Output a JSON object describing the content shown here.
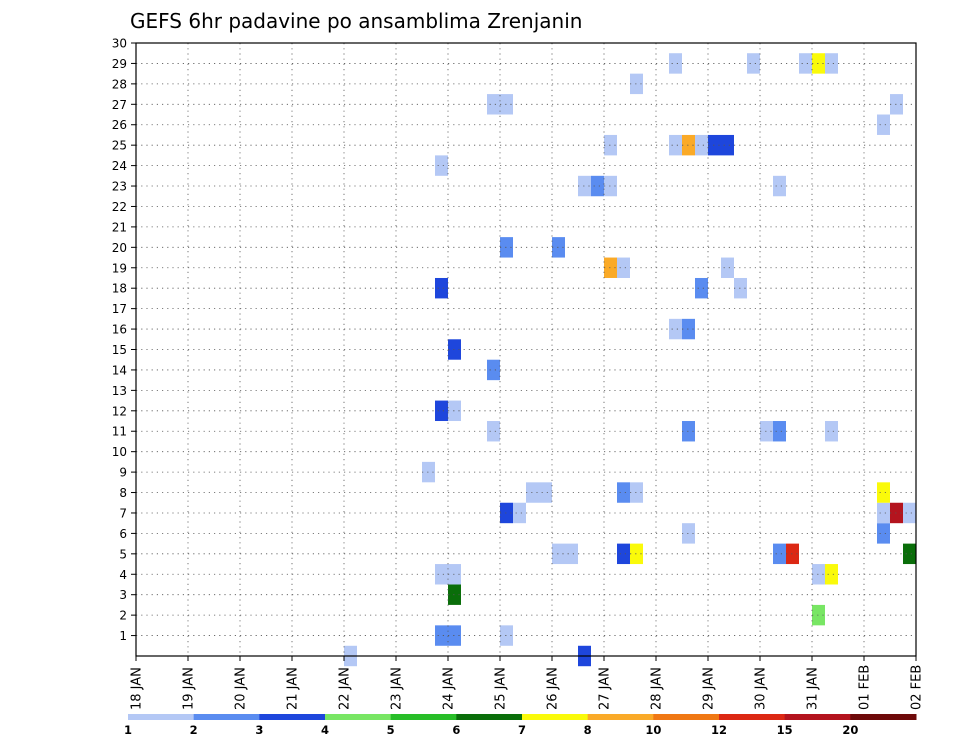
{
  "chart_data": {
    "type": "heatmap",
    "title": "GEFS 6hr padavine po ansamblima Zrenjanin",
    "x_tick_labels": [
      "18 JAN",
      "19 JAN",
      "20 JAN",
      "21 JAN",
      "22 JAN",
      "23 JAN",
      "24 JAN",
      "25 JAN",
      "26 JAN",
      "27 JAN",
      "28 JAN",
      "29 JAN",
      "30 JAN",
      "31 JAN",
      "01 FEB",
      "02 FEB"
    ],
    "y_tick_labels": [
      "1",
      "2",
      "3",
      "4",
      "5",
      "6",
      "7",
      "8",
      "9",
      "10",
      "11",
      "12",
      "13",
      "14",
      "15",
      "16",
      "17",
      "18",
      "19",
      "20",
      "21",
      "22",
      "23",
      "24",
      "25",
      "26",
      "27",
      "28",
      "29",
      "30"
    ],
    "xlim_days": [
      0,
      15
    ],
    "ylim": [
      0,
      30
    ],
    "time_step_hours": 6,
    "grid": "dotted",
    "colorbar": {
      "tick_labels": [
        "1",
        "2",
        "3",
        "4",
        "5",
        "6",
        "7",
        "8",
        "10",
        "12",
        "15",
        "20"
      ],
      "colors": [
        "#b4c8f5",
        "#5a8cf0",
        "#1e46dc",
        "#78e664",
        "#28be28",
        "#0a6e0a",
        "#fafa0a",
        "#faaa28",
        "#f07814",
        "#dc2814",
        "#b4141e",
        "#6e0a0a"
      ]
    },
    "cells_note": "x in days since 18 JAN 00z (6-hourly steps), y = ensemble member, c = colour class index (0-based)",
    "cells": [
      {
        "x": 4.0,
        "y": 0,
        "c": 0
      },
      {
        "x": 5.75,
        "y": 1,
        "c": 1
      },
      {
        "x": 6.0,
        "y": 1,
        "c": 1
      },
      {
        "x": 7.0,
        "y": 1,
        "c": 0
      },
      {
        "x": 8.5,
        "y": 0,
        "c": 2
      },
      {
        "x": 13.0,
        "y": 2,
        "c": 3
      },
      {
        "x": 6.0,
        "y": 3,
        "c": 5
      },
      {
        "x": 5.75,
        "y": 4,
        "c": 0
      },
      {
        "x": 6.0,
        "y": 4,
        "c": 0
      },
      {
        "x": 13.0,
        "y": 4,
        "c": 0
      },
      {
        "x": 13.25,
        "y": 4,
        "c": 6
      },
      {
        "x": 8.0,
        "y": 5,
        "c": 0
      },
      {
        "x": 8.25,
        "y": 5,
        "c": 0
      },
      {
        "x": 9.25,
        "y": 5,
        "c": 2
      },
      {
        "x": 9.5,
        "y": 5,
        "c": 6
      },
      {
        "x": 12.25,
        "y": 5,
        "c": 1
      },
      {
        "x": 12.5,
        "y": 5,
        "c": 9
      },
      {
        "x": 14.75,
        "y": 5,
        "c": 5
      },
      {
        "x": 10.5,
        "y": 6,
        "c": 0
      },
      {
        "x": 14.25,
        "y": 6,
        "c": 1
      },
      {
        "x": 7.0,
        "y": 7,
        "c": 2
      },
      {
        "x": 7.25,
        "y": 7,
        "c": 0
      },
      {
        "x": 14.25,
        "y": 7,
        "c": 0
      },
      {
        "x": 14.5,
        "y": 7,
        "c": 10
      },
      {
        "x": 14.75,
        "y": 7,
        "c": 0
      },
      {
        "x": 7.5,
        "y": 8,
        "c": 0
      },
      {
        "x": 7.75,
        "y": 8,
        "c": 0
      },
      {
        "x": 9.25,
        "y": 8,
        "c": 1
      },
      {
        "x": 9.5,
        "y": 8,
        "c": 0
      },
      {
        "x": 14.25,
        "y": 8,
        "c": 6
      },
      {
        "x": 5.5,
        "y": 9,
        "c": 0
      },
      {
        "x": 6.75,
        "y": 11,
        "c": 0
      },
      {
        "x": 10.5,
        "y": 11,
        "c": 1
      },
      {
        "x": 12.0,
        "y": 11,
        "c": 0
      },
      {
        "x": 12.25,
        "y": 11,
        "c": 1
      },
      {
        "x": 13.25,
        "y": 11,
        "c": 0
      },
      {
        "x": 5.75,
        "y": 12,
        "c": 2
      },
      {
        "x": 6.0,
        "y": 12,
        "c": 0
      },
      {
        "x": 6.75,
        "y": 14,
        "c": 1
      },
      {
        "x": 6.0,
        "y": 15,
        "c": 2
      },
      {
        "x": 10.25,
        "y": 16,
        "c": 0
      },
      {
        "x": 10.5,
        "y": 16,
        "c": 1
      },
      {
        "x": 5.75,
        "y": 18,
        "c": 2
      },
      {
        "x": 10.75,
        "y": 18,
        "c": 1
      },
      {
        "x": 11.5,
        "y": 18,
        "c": 0
      },
      {
        "x": 9.0,
        "y": 19,
        "c": 7
      },
      {
        "x": 9.25,
        "y": 19,
        "c": 0
      },
      {
        "x": 11.25,
        "y": 19,
        "c": 0
      },
      {
        "x": 7.0,
        "y": 20,
        "c": 1
      },
      {
        "x": 8.0,
        "y": 20,
        "c": 1
      },
      {
        "x": 8.5,
        "y": 23,
        "c": 0
      },
      {
        "x": 8.75,
        "y": 23,
        "c": 1
      },
      {
        "x": 9.0,
        "y": 23,
        "c": 0
      },
      {
        "x": 12.25,
        "y": 23,
        "c": 0
      },
      {
        "x": 5.75,
        "y": 24,
        "c": 0
      },
      {
        "x": 9.0,
        "y": 25,
        "c": 0
      },
      {
        "x": 10.25,
        "y": 25,
        "c": 0
      },
      {
        "x": 10.5,
        "y": 25,
        "c": 7
      },
      {
        "x": 10.75,
        "y": 25,
        "c": 0
      },
      {
        "x": 11.0,
        "y": 25,
        "c": 2
      },
      {
        "x": 11.25,
        "y": 25,
        "c": 2
      },
      {
        "x": 14.25,
        "y": 26,
        "c": 0
      },
      {
        "x": 6.75,
        "y": 27,
        "c": 0
      },
      {
        "x": 7.0,
        "y": 27,
        "c": 0
      },
      {
        "x": 14.5,
        "y": 27,
        "c": 0
      },
      {
        "x": 9.5,
        "y": 28,
        "c": 0
      },
      {
        "x": 10.25,
        "y": 29,
        "c": 0
      },
      {
        "x": 11.75,
        "y": 29,
        "c": 0
      },
      {
        "x": 12.75,
        "y": 29,
        "c": 0
      },
      {
        "x": 13.0,
        "y": 29,
        "c": 6
      },
      {
        "x": 13.25,
        "y": 29,
        "c": 0
      }
    ]
  }
}
